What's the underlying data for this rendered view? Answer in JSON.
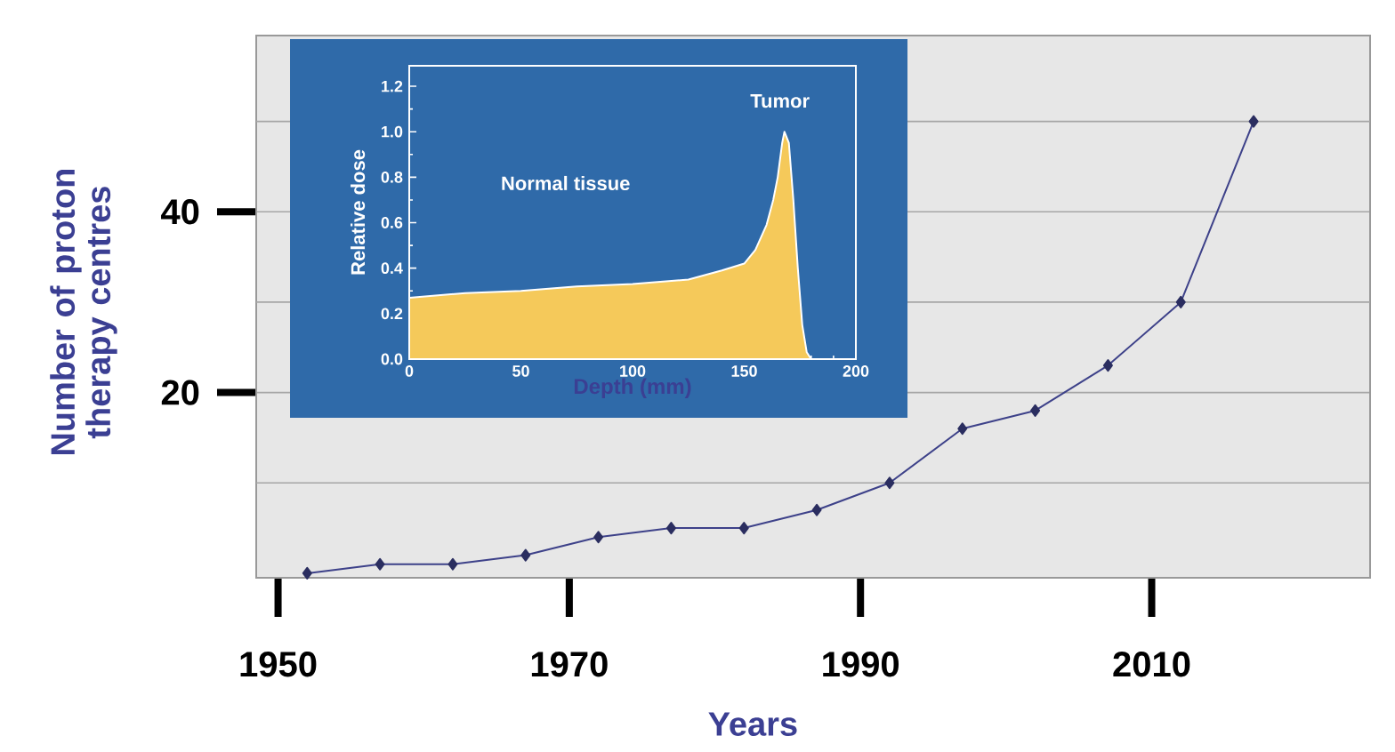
{
  "chart_data": [
    {
      "type": "line",
      "xlabel": "Years",
      "ylabel": "Number of proton therapy centres",
      "x": [
        1952,
        1957,
        1962,
        1967,
        1972,
        1977,
        1982,
        1987,
        1992,
        1997,
        2002,
        2007,
        2012,
        2017
      ],
      "series": [
        {
          "color": "#3d4189",
          "values": [
            0,
            1,
            1,
            2,
            4,
            5,
            5,
            7,
            10,
            16,
            18,
            23,
            30,
            50
          ]
        }
      ],
      "xlim": [
        1948.5,
        2025
      ],
      "ylim": [
        -0.5,
        59.5
      ],
      "xticks": [
        1950,
        1970,
        1990,
        2010
      ],
      "yticks": [
        {
          "value": 10,
          "label": null
        },
        20,
        {
          "value": 30,
          "label": null
        },
        40,
        {
          "value": 50,
          "label": null
        }
      ],
      "grid": "y",
      "marker": "diamond"
    },
    {
      "type": "area",
      "xlabel": "Depth (mm)",
      "ylabel": "Relative dose",
      "x": [
        0,
        25,
        50,
        75,
        100,
        125,
        140,
        150,
        155,
        160,
        163,
        165,
        167,
        168,
        170,
        172,
        174,
        176,
        178,
        180
      ],
      "series": [
        {
          "color": "#f5c95a",
          "values": [
            0.27,
            0.29,
            0.3,
            0.32,
            0.33,
            0.35,
            0.39,
            0.42,
            0.48,
            0.59,
            0.7,
            0.8,
            0.95,
            1.0,
            0.95,
            0.7,
            0.4,
            0.15,
            0.03,
            0
          ]
        }
      ],
      "xlim": [
        0,
        200
      ],
      "ylim": [
        0,
        1.29
      ],
      "xticks": [
        0,
        50,
        100,
        150,
        200
      ],
      "yticks": [
        {
          "value": 0,
          "label": "0.0"
        },
        {
          "value": 0.2,
          "label": "0.2"
        },
        {
          "value": 0.4,
          "label": "0.4"
        },
        {
          "value": 0.6,
          "label": "0.6"
        },
        {
          "value": 0.8,
          "label": "0.8"
        },
        {
          "value": 1,
          "label": "1.0"
        },
        {
          "value": 1.2,
          "label": "1.2"
        }
      ],
      "annotations": [
        "Tumor",
        "Normal tissue"
      ]
    }
  ]
}
